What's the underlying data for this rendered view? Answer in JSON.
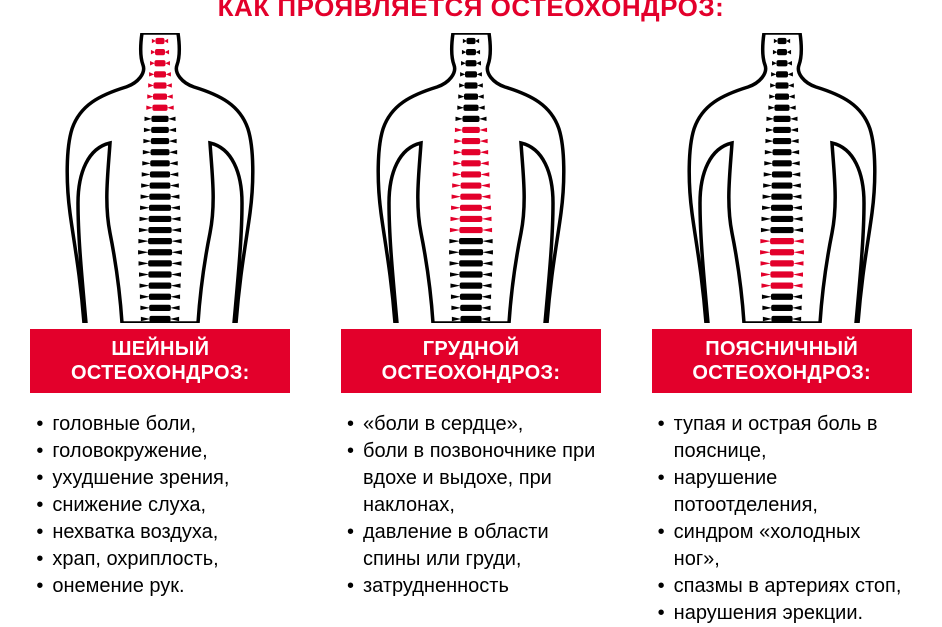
{
  "title": "КАК ПРОЯВЛЯЕТСЯ ОСТЕОХОНДРОЗ:",
  "colors": {
    "accent": "#e3002b",
    "vertebra_black": "#000000",
    "vertebra_red": "#e3002b",
    "outline": "#000000",
    "background": "#ffffff",
    "text": "#000000",
    "label_text": "#ffffff"
  },
  "vertebrae_total": 26,
  "columns": [
    {
      "label_line1": "ШЕЙНЫЙ",
      "label_line2": "ОСТЕОХОНДРОЗ:",
      "highlight_range": [
        0,
        6
      ],
      "symptoms": [
        "головные боли,",
        "головокружение,",
        "ухудшение зрения,",
        "снижение слуха,",
        "нехватка воздуха,",
        "храп, охриплость,",
        "онемение рук."
      ]
    },
    {
      "label_line1": "ГРУДНОЙ",
      "label_line2": "ОСТЕОХОНДРОЗ:",
      "highlight_range": [
        8,
        17
      ],
      "symptoms": [
        "«боли в сердце»,",
        "боли в позвоночнике при вдохе и выдохе, при наклонах,",
        "давление в области спины или груди,",
        "затрудненность"
      ]
    },
    {
      "label_line1": "ПОЯСНИЧНЫЙ",
      "label_line2": "ОСТЕОХОНДРОЗ:",
      "highlight_range": [
        18,
        22
      ],
      "symptoms": [
        "тупая и острая боль в пояснице,",
        "нарушение потоотделения,",
        "синдром «холодных ног»,",
        "спазмы в артериях стоп,",
        "нарушения эрекции."
      ]
    }
  ]
}
